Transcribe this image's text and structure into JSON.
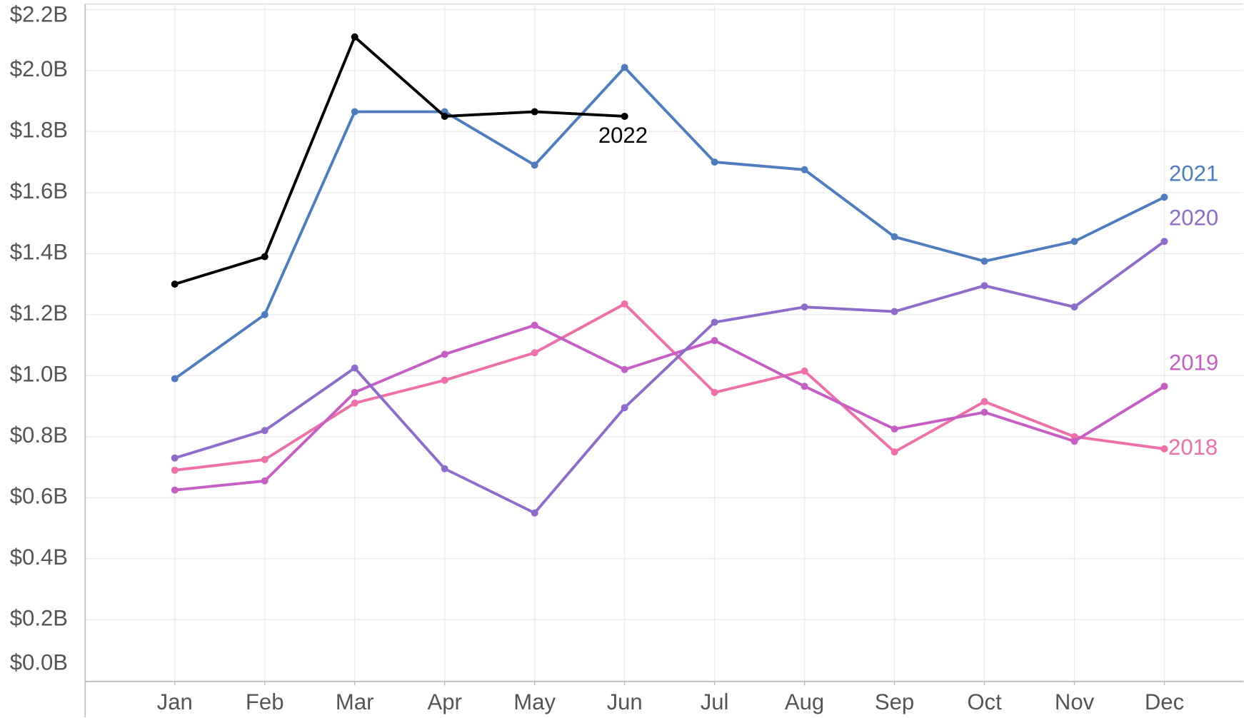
{
  "chart_data": {
    "type": "line",
    "categories": [
      "Jan",
      "Feb",
      "Mar",
      "Apr",
      "May",
      "Jun",
      "Jul",
      "Aug",
      "Sep",
      "Oct",
      "Nov",
      "Dec"
    ],
    "series": [
      {
        "name": "2018",
        "color": "#ef6fa9",
        "values": [
          690000000,
          725000000,
          910000000,
          985000000,
          1075000000,
          1235000000,
          945000000,
          1015000000,
          750000000,
          915000000,
          800000000,
          760000000
        ]
      },
      {
        "name": "2019",
        "color": "#c75ec5",
        "values": [
          625000000,
          655000000,
          945000000,
          1070000000,
          1165000000,
          1020000000,
          1115000000,
          965000000,
          825000000,
          880000000,
          785000000,
          965000000
        ]
      },
      {
        "name": "2020",
        "color": "#8e6ccb",
        "values": [
          730000000,
          820000000,
          1025000000,
          695000000,
          550000000,
          895000000,
          1175000000,
          1225000000,
          1210000000,
          1295000000,
          1225000000,
          1440000000
        ]
      },
      {
        "name": "2021",
        "color": "#4e7dbf",
        "values": [
          990000000,
          1200000000,
          1865000000,
          1865000000,
          1690000000,
          2010000000,
          1700000000,
          1675000000,
          1455000000,
          1375000000,
          1440000000,
          1585000000
        ]
      },
      {
        "name": "2022",
        "color": "#000000",
        "values": [
          1300000000,
          1390000000,
          2110000000,
          1850000000,
          1865000000,
          1850000000,
          null,
          null,
          null,
          null,
          null,
          null
        ]
      }
    ],
    "ylim": [
      0,
      2200000000
    ],
    "yticks": [
      {
        "value": 0,
        "label": "$0.0B"
      },
      {
        "value": 200000000,
        "label": "$0.2B"
      },
      {
        "value": 400000000,
        "label": "$0.4B"
      },
      {
        "value": 600000000,
        "label": "$0.6B"
      },
      {
        "value": 800000000,
        "label": "$0.8B"
      },
      {
        "value": 1000000000,
        "label": "$1.0B"
      },
      {
        "value": 1200000000,
        "label": "$1.2B"
      },
      {
        "value": 1400000000,
        "label": "$1.4B"
      },
      {
        "value": 1600000000,
        "label": "$1.6B"
      },
      {
        "value": 1800000000,
        "label": "$1.8B"
      },
      {
        "value": 2000000000,
        "label": "$2.0B"
      },
      {
        "value": 2200000000,
        "label": "$2.2B"
      }
    ],
    "grid": true
  }
}
